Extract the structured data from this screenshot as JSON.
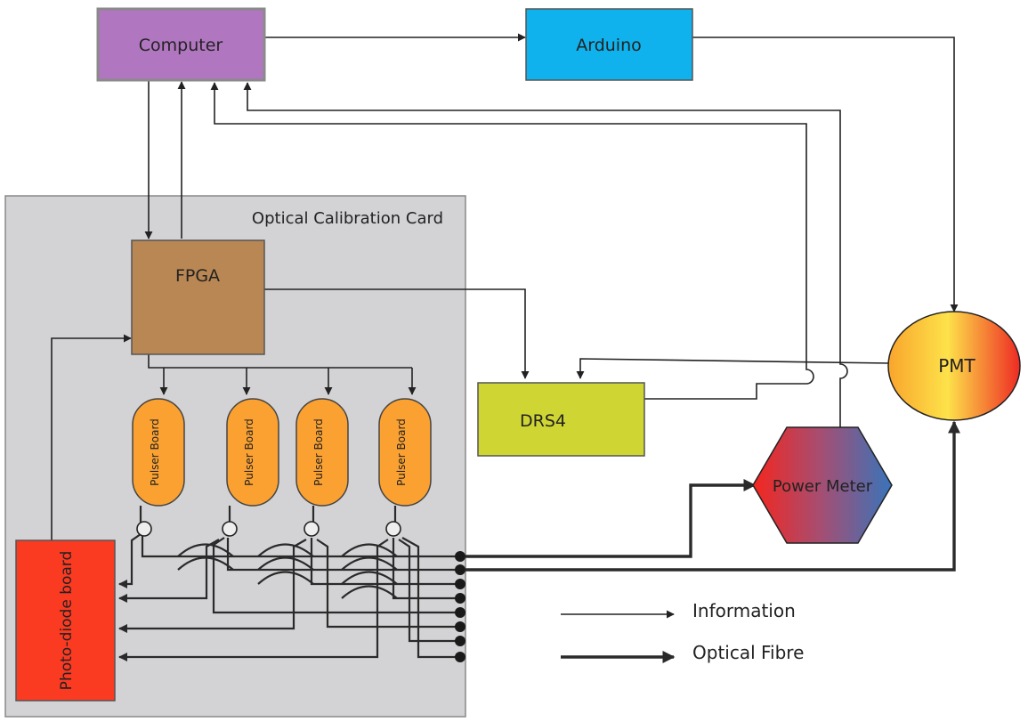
{
  "nodes": {
    "computer": "Computer",
    "arduino": "Arduino",
    "card": "Optical Calibration Card",
    "fpga": "FPGA",
    "drs4": "DRS4",
    "pmt": "PMT",
    "power_meter": "Power Meter",
    "photodiode": "Photo-diode board",
    "pulser_boards": [
      "Pulser Board",
      "Pulser Board",
      "Pulser Board",
      "Pulser Board"
    ]
  },
  "legend": {
    "information": "Information",
    "optical_fibre": "Optical Fibre"
  },
  "colors": {
    "computer": "#b176c0",
    "arduino": "#0fb2ec",
    "card_bg": "#d3d3d6",
    "fpga": "#b98753",
    "drs4": "#cfd633",
    "pulser": "#fba131",
    "photodiode": "#fb3a22"
  }
}
